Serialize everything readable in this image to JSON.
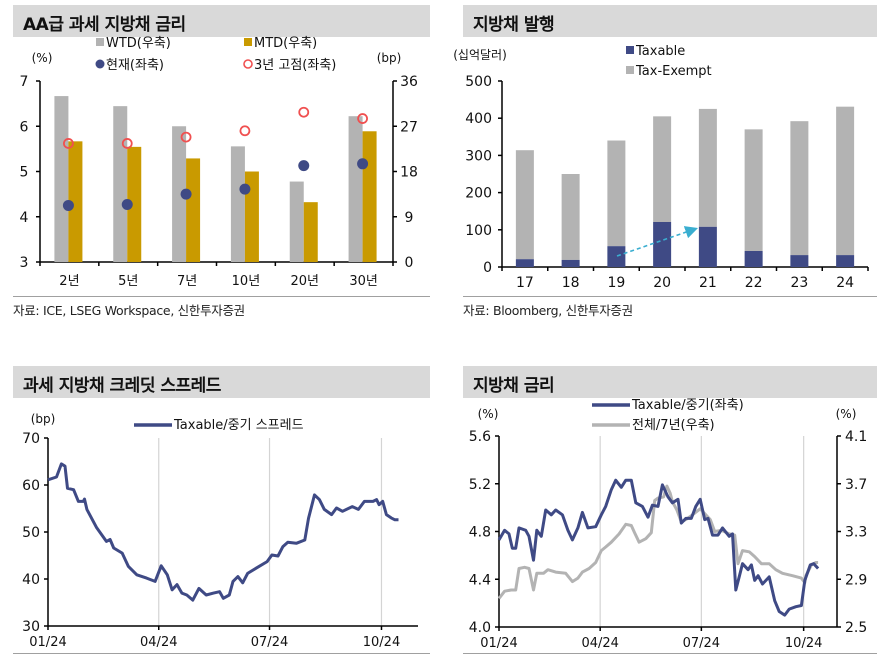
{
  "panels": [
    {
      "title": "AA급 과세 지방채 금리",
      "source": "자료: ICE, LSEG Workspace, 신한투자증권"
    },
    {
      "title": "지방채 발행",
      "source": "자료: Bloomberg, 신한투자증권"
    },
    {
      "title": "과세 지방채 크레딧 스프레드",
      "source": ""
    },
    {
      "title": "지방채 금리",
      "source": ""
    }
  ],
  "colors": {
    "navy": "#3f4a85",
    "gray": "#b3b3b3",
    "gold": "#c99a00",
    "red": "#f05050",
    "cyan": "#3aaed0",
    "header": "#d9d9d9"
  },
  "chart_data": [
    {
      "type": "bar",
      "title": "AA급 과세 지방채 금리",
      "categories": [
        "2년",
        "5년",
        "7년",
        "10년",
        "20년",
        "30년"
      ],
      "ylabel_left": "(%)",
      "ylabel_right": "(bp)",
      "ylim_left": [
        3,
        7
      ],
      "yticks_left": [
        "3",
        "4",
        "5",
        "6",
        "7"
      ],
      "ylim_right": [
        0,
        36
      ],
      "yticks_right": [
        "0",
        "9",
        "18",
        "27",
        "36"
      ],
      "legend": "top",
      "series": [
        {
          "name": "WTD(우축)",
          "kind": "bar",
          "axis": "right",
          "color": "#b3b3b3",
          "values": [
            33.0,
            31.0,
            27.0,
            23.0,
            16.0,
            29.0
          ]
        },
        {
          "name": "MTD(우축)",
          "kind": "bar",
          "axis": "right",
          "color": "#c99a00",
          "values": [
            24.0,
            22.9,
            20.6,
            18.0,
            11.9,
            26.0
          ]
        },
        {
          "name": "현재(좌축)",
          "kind": "dot",
          "axis": "left",
          "color": "#3f4a85",
          "values": [
            4.25,
            4.27,
            4.5,
            4.61,
            5.13,
            5.17
          ]
        },
        {
          "name": "3년 고점(좌축)",
          "kind": "ring",
          "axis": "left",
          "color": "#f05050",
          "values": [
            5.62,
            5.62,
            5.76,
            5.9,
            6.31,
            6.17
          ]
        }
      ]
    },
    {
      "type": "bar",
      "stacked": true,
      "title": "지방채 발행",
      "categories": [
        "17",
        "18",
        "19",
        "20",
        "21",
        "22",
        "23",
        "24"
      ],
      "ylabel": "(십억달러)",
      "ylim": [
        0,
        500
      ],
      "yticks": [
        "0",
        "100",
        "200",
        "300",
        "400",
        "500"
      ],
      "legend": "top",
      "series": [
        {
          "name": "Taxable",
          "color": "#3f4a85",
          "values": [
            21,
            19,
            56,
            121,
            108,
            43,
            32,
            32
          ]
        },
        {
          "name": "Tax-Exempt",
          "color": "#b3b3b3",
          "values": [
            293,
            231,
            284,
            284,
            317,
            327,
            360,
            399
          ]
        }
      ],
      "annotation": {
        "type": "dashed-arrow",
        "from": "19",
        "to": "21"
      }
    },
    {
      "type": "line",
      "title": "과세 지방채 크레딧 스프레드",
      "ylabel": "(bp)",
      "ylim": [
        30,
        70
      ],
      "yticks": [
        "30",
        "40",
        "50",
        "60",
        "70"
      ],
      "xlim": [
        "2024-01-01",
        "2024-10-31"
      ],
      "xticks": [
        {
          "date": "2024-01-01",
          "label": "01/24"
        },
        {
          "date": "2024-04-01",
          "label": "04/24"
        },
        {
          "date": "2024-07-01",
          "label": "07/24"
        },
        {
          "date": "2024-10-01",
          "label": "10/24"
        }
      ],
      "grid": "vertical",
      "legend": "top",
      "series": [
        {
          "name": "Taxable/중기 스프레드",
          "color": "#3f4a85",
          "x": [
            "2024-01-01",
            "2024-01-08",
            "2024-01-12",
            "2024-01-15",
            "2024-01-17",
            "2024-01-22",
            "2024-01-26",
            "2024-01-30",
            "2024-01-31",
            "2024-02-02",
            "2024-02-10",
            "2024-02-18",
            "2024-02-21",
            "2024-02-24",
            "2024-03-02",
            "2024-03-07",
            "2024-03-14",
            "2024-03-22",
            "2024-03-29",
            "2024-04-03",
            "2024-04-08",
            "2024-04-12",
            "2024-04-16",
            "2024-04-20",
            "2024-04-24",
            "2024-04-29",
            "2024-05-04",
            "2024-05-10",
            "2024-05-16",
            "2024-05-21",
            "2024-05-24",
            "2024-05-29",
            "2024-06-01",
            "2024-06-05",
            "2024-06-09",
            "2024-06-13",
            "2024-06-20",
            "2024-06-29",
            "2024-07-03",
            "2024-07-08",
            "2024-07-12",
            "2024-07-16",
            "2024-07-23",
            "2024-07-30",
            "2024-08-02",
            "2024-08-07",
            "2024-08-11",
            "2024-08-15",
            "2024-08-21",
            "2024-08-25",
            "2024-08-30",
            "2024-09-07",
            "2024-09-12",
            "2024-09-17",
            "2024-09-24",
            "2024-09-27",
            "2024-09-29",
            "2024-10-02",
            "2024-10-05",
            "2024-10-09",
            "2024-10-12",
            "2024-10-15"
          ],
          "y": [
            61.1,
            61.7,
            64.5,
            64.0,
            59.3,
            59.0,
            56.5,
            56.5,
            57.0,
            54.8,
            50.9,
            48.0,
            48.4,
            46.6,
            45.5,
            42.7,
            40.9,
            40.2,
            39.5,
            42.8,
            40.9,
            37.7,
            38.8,
            37.0,
            36.6,
            35.5,
            38.0,
            36.6,
            37.0,
            37.3,
            35.9,
            36.6,
            39.5,
            40.5,
            39.2,
            41.2,
            42.3,
            43.7,
            45.1,
            44.9,
            46.9,
            47.8,
            47.6,
            48.3,
            52.9,
            57.9,
            56.9,
            54.8,
            53.7,
            55.1,
            54.4,
            55.4,
            54.8,
            56.5,
            56.5,
            56.9,
            55.8,
            56.5,
            53.7,
            53.0,
            52.6,
            52.6
          ]
        }
      ]
    },
    {
      "type": "line",
      "title": "지방채 금리",
      "ylabel_left": "(%)",
      "ylabel_right": "(%)",
      "ylim_left": [
        4.0,
        5.6
      ],
      "yticks_left": [
        "4.0",
        "4.4",
        "4.8",
        "5.2",
        "5.6"
      ],
      "ylim_right": [
        2.5,
        4.1
      ],
      "yticks_right": [
        "2.5",
        "2.9",
        "3.3",
        "3.7",
        "4.1"
      ],
      "xlim": [
        "2024-01-01",
        "2024-10-31"
      ],
      "xticks": [
        {
          "date": "2024-01-01",
          "label": "01/24"
        },
        {
          "date": "2024-04-01",
          "label": "04/24"
        },
        {
          "date": "2024-07-01",
          "label": "07/24"
        },
        {
          "date": "2024-10-01",
          "label": "10/24"
        }
      ],
      "grid": "vertical",
      "legend": "top",
      "series": [
        {
          "name": "Taxable/중기(좌축)",
          "axis": "left",
          "color": "#3f4a85",
          "x": [
            "2024-01-01",
            "2024-01-06",
            "2024-01-10",
            "2024-01-13",
            "2024-01-16",
            "2024-01-19",
            "2024-01-25",
            "2024-01-28",
            "2024-02-01",
            "2024-02-04",
            "2024-02-08",
            "2024-02-12",
            "2024-02-17",
            "2024-02-21",
            "2024-02-27",
            "2024-03-03",
            "2024-03-07",
            "2024-03-12",
            "2024-03-16",
            "2024-03-21",
            "2024-03-28",
            "2024-04-02",
            "2024-04-06",
            "2024-04-11",
            "2024-04-15",
            "2024-04-20",
            "2024-04-24",
            "2024-04-29",
            "2024-05-03",
            "2024-05-09",
            "2024-05-14",
            "2024-05-18",
            "2024-05-23",
            "2024-05-27",
            "2024-06-01",
            "2024-06-05",
            "2024-06-10",
            "2024-06-13",
            "2024-06-17",
            "2024-06-22",
            "2024-06-26",
            "2024-06-30",
            "2024-07-04",
            "2024-07-07",
            "2024-07-11",
            "2024-07-16",
            "2024-07-20",
            "2024-07-26",
            "2024-07-29",
            "2024-08-01",
            "2024-08-04",
            "2024-08-07",
            "2024-08-12",
            "2024-08-15",
            "2024-08-18",
            "2024-08-21",
            "2024-08-25",
            "2024-08-31",
            "2024-09-05",
            "2024-09-09",
            "2024-09-14",
            "2024-09-18",
            "2024-09-24",
            "2024-09-29",
            "2024-10-02",
            "2024-10-07",
            "2024-10-10",
            "2024-10-14"
          ],
          "y": [
            4.73,
            4.81,
            4.78,
            4.66,
            4.66,
            4.83,
            4.81,
            4.76,
            4.56,
            4.81,
            4.76,
            4.98,
            4.94,
            4.98,
            4.94,
            4.81,
            4.73,
            4.83,
            4.96,
            4.83,
            4.84,
            4.94,
            5.01,
            5.15,
            5.23,
            5.17,
            5.23,
            5.23,
            5.04,
            5.01,
            4.92,
            5.02,
            5.01,
            5.19,
            5.09,
            5.04,
            5.07,
            4.87,
            4.91,
            4.91,
            5.01,
            5.07,
            4.9,
            4.91,
            4.77,
            4.77,
            4.83,
            4.76,
            4.78,
            4.31,
            4.42,
            4.53,
            4.48,
            4.52,
            4.39,
            4.43,
            4.36,
            4.42,
            4.22,
            4.13,
            4.1,
            4.15,
            4.17,
            4.18,
            4.39,
            4.52,
            4.53,
            4.49
          ]
        },
        {
          "name": "전체/7년(우축)",
          "axis": "right",
          "color": "#b3b3b3",
          "x": [
            "2024-01-01",
            "2024-01-06",
            "2024-01-12",
            "2024-01-16",
            "2024-01-19",
            "2024-01-24",
            "2024-01-28",
            "2024-02-01",
            "2024-02-04",
            "2024-02-10",
            "2024-02-14",
            "2024-02-21",
            "2024-03-01",
            "2024-03-07",
            "2024-03-12",
            "2024-03-16",
            "2024-03-22",
            "2024-03-28",
            "2024-04-02",
            "2024-04-06",
            "2024-04-11",
            "2024-04-18",
            "2024-04-24",
            "2024-04-29",
            "2024-05-02",
            "2024-05-06",
            "2024-05-12",
            "2024-05-17",
            "2024-05-20",
            "2024-05-23",
            "2024-05-28",
            "2024-05-31",
            "2024-06-03",
            "2024-06-05",
            "2024-06-09",
            "2024-06-13",
            "2024-06-17",
            "2024-06-23",
            "2024-06-30",
            "2024-07-04",
            "2024-07-09",
            "2024-07-13",
            "2024-07-19",
            "2024-07-26",
            "2024-07-31",
            "2024-08-03",
            "2024-08-07",
            "2024-08-13",
            "2024-08-18",
            "2024-08-24",
            "2024-08-31",
            "2024-09-06",
            "2024-09-12",
            "2024-09-21",
            "2024-09-29",
            "2024-10-02",
            "2024-10-03",
            "2024-10-08",
            "2024-10-12",
            "2024-10-14"
          ],
          "y": [
            2.74,
            2.8,
            2.81,
            2.81,
            2.99,
            3.0,
            2.99,
            2.81,
            2.95,
            2.95,
            2.98,
            2.96,
            2.95,
            2.88,
            2.91,
            2.96,
            2.99,
            3.04,
            3.14,
            3.17,
            3.21,
            3.28,
            3.36,
            3.35,
            3.29,
            3.21,
            3.24,
            3.29,
            3.56,
            3.58,
            3.59,
            3.68,
            3.62,
            3.55,
            3.48,
            3.38,
            3.4,
            3.44,
            3.49,
            3.45,
            3.4,
            3.3,
            3.31,
            3.28,
            3.27,
            3.03,
            3.14,
            3.13,
            3.09,
            3.03,
            3.03,
            2.98,
            2.95,
            2.93,
            2.91,
            2.87,
            2.93,
            3.02,
            3.04,
            3.04
          ]
        }
      ]
    }
  ]
}
